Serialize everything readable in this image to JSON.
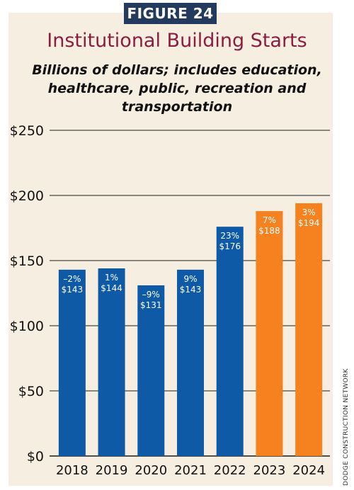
{
  "figure_label": "FIGURE 24",
  "source": "DODGE CONSTRUCTION NETWORK",
  "colors": {
    "actual": "#0f5aa6",
    "forecast": "#f5821f",
    "title": "#8c1d40",
    "panel": "#f6efe1",
    "badge": "#223a5e"
  },
  "chart_data": {
    "type": "bar",
    "title": "Institutional Building Starts",
    "subtitle": "Billions of dollars; includes education, healthcare, public, recreation and transportation",
    "xlabel": "",
    "ylabel": "",
    "categories": [
      "2018",
      "2019",
      "2020",
      "2021",
      "2022",
      "2023",
      "2024"
    ],
    "values": [
      143,
      144,
      131,
      143,
      176,
      188,
      194
    ],
    "value_labels": [
      "$143",
      "$144",
      "$131",
      "$143",
      "$176",
      "$188",
      "$194"
    ],
    "change_labels": [
      "–2%",
      "1%",
      "–9%",
      "9%",
      "23%",
      "7%",
      "3%"
    ],
    "bar_type": [
      "actual",
      "actual",
      "actual",
      "actual",
      "actual",
      "forecast",
      "forecast"
    ],
    "ylim": [
      0,
      250
    ],
    "yticks": [
      0,
      50,
      100,
      150,
      200,
      250
    ],
    "ytick_labels": [
      "$0",
      "$50",
      "$100",
      "$150",
      "$200",
      "$250"
    ],
    "grid": true,
    "legend": "none"
  }
}
